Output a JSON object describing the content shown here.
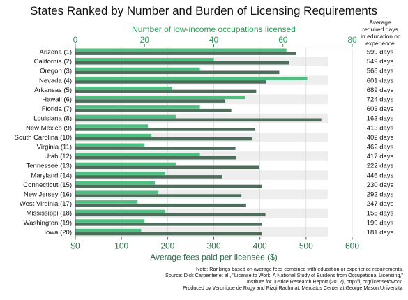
{
  "colors": {
    "occupations_bar": "#4dbf80",
    "fees_bar": "#4f6d5b",
    "top_axis_text": "#2e9e5b",
    "bottom_axis_text": "#2f6b4a",
    "row_band": "#eeeeee"
  },
  "chart_data": {
    "type": "bar",
    "orientation": "horizontal",
    "title": "States Ranked by Number and Burden of Licensing Requirements",
    "top_axis_label": "Number of low-income occupations licensed",
    "bottom_axis_label": "Average fees paid per licensee ($)",
    "days_header": [
      "Average",
      "required days",
      "in education or",
      "experience"
    ],
    "top_axis": {
      "range": [
        0,
        80
      ],
      "ticks": [
        "0",
        "20",
        "40",
        "60",
        "80"
      ]
    },
    "bottom_axis": {
      "range": [
        0,
        600
      ],
      "ticks": [
        "$0",
        "100",
        "200",
        "300",
        "400",
        "500",
        "600"
      ]
    },
    "categories": [
      "Arizona (1)",
      "California (2)",
      "Oregon (3)",
      "Nevada (4)",
      "Arkansas (5)",
      "Hawaii (6)",
      "Florida (7)",
      "Louisiana (8)",
      "New Mexico (9)",
      "South Carolina (10)",
      "Virginia (11)",
      "Utah (12)",
      "Tennessee (13)",
      "Maryland (14)",
      "Connecticut (15)",
      "New Jersey (16)",
      "West Virginia (17)",
      "Mississippi (18)",
      "Washington (19)",
      "Iowa (20)"
    ],
    "series": [
      {
        "key": "occupations",
        "axis": "top",
        "values": [
          61,
          40,
          36,
          67,
          28,
          49,
          36,
          29,
          21,
          22,
          20,
          36,
          29,
          26,
          23,
          24,
          18,
          26,
          20,
          19
        ]
      },
      {
        "key": "fees",
        "axis": "bottom",
        "values": [
          478,
          463,
          442,
          413,
          392,
          325,
          338,
          533,
          390,
          383,
          347,
          348,
          398,
          318,
          405,
          360,
          370,
          412,
          405,
          404
        ]
      }
    ],
    "days": [
      "599 days",
      "549 days",
      "568 days",
      "601 days",
      "689 days",
      "724 days",
      "603 days",
      "163 days",
      "413 days",
      "402 days",
      "462 days",
      "417 days",
      "222 days",
      "446 days",
      "230 days",
      "292 days",
      "247 days",
      "155 days",
      "199 days",
      "181 days"
    ],
    "notes": [
      "Note: Rankings based on average fees combined with education or experience requirements.",
      "Source: Dick Carpenter et al., \"License to Work: A National Study of Burdens from Occupational Licensing,\"",
      "Institute for Justice Research Report (2012), http://ij.org/licensetowork.",
      "Produced by Veronique de Rugy and Rizqi Rachmat, Mercatus Center at George Mason University."
    ]
  }
}
